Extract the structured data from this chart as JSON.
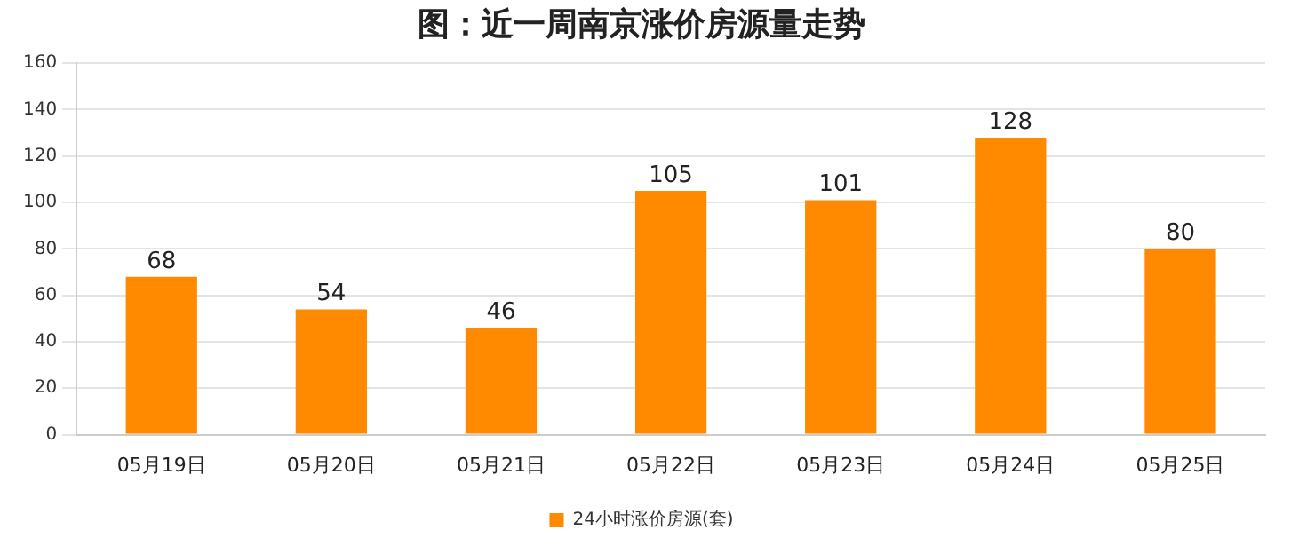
{
  "chart_data": {
    "type": "bar",
    "title": "图：近一周南京涨价房源量走势",
    "categories": [
      "05月19日",
      "05月20日",
      "05月21日",
      "05月22日",
      "05月23日",
      "05月24日",
      "05月25日"
    ],
    "series": [
      {
        "name": "24小时涨价房源(套)",
        "color": "#ff8a00",
        "values": [
          68,
          54,
          46,
          105,
          101,
          128,
          80
        ]
      }
    ],
    "ylim": [
      0,
      160
    ],
    "yticks": [
      0,
      20,
      40,
      60,
      80,
      100,
      120,
      140,
      160
    ],
    "grid": "y",
    "legend": "bottom",
    "data_labels": true
  }
}
